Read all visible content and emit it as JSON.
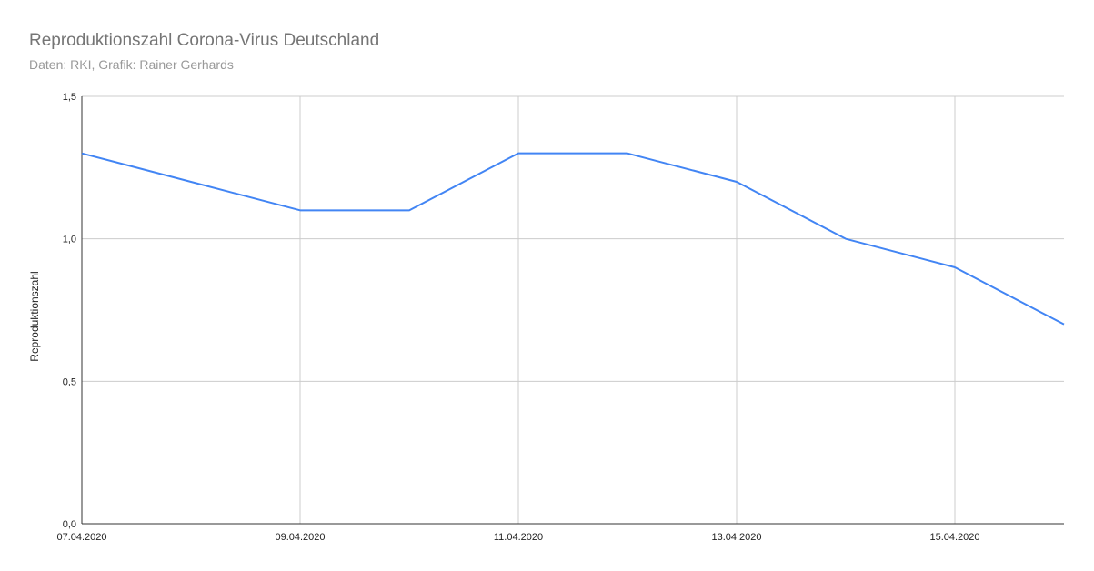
{
  "chart_data": {
    "type": "line",
    "title": "Reproduktionszahl Corona-Virus Deutschland",
    "subtitle": "Daten: RKI, Grafik: Rainer Gerhards",
    "y_label": "Reproduktionszahl",
    "categories": [
      "07.04.2020",
      null,
      "09.04.2020",
      null,
      "11.04.2020",
      null,
      "13.04.2020",
      null,
      "15.04.2020",
      null
    ],
    "values": [
      1.3,
      1.2,
      1.1,
      1.1,
      1.3,
      1.3,
      1.2,
      1.0,
      0.9,
      0.7
    ],
    "color": "#4285f4",
    "ylim": [
      0,
      1.5
    ],
    "yticks": [
      {
        "value": 0,
        "label": "0,0"
      },
      {
        "value": 0.5,
        "label": "0,5"
      },
      {
        "value": 1,
        "label": "1,0"
      },
      {
        "value": 1.5,
        "label": "1,5"
      }
    ],
    "grid": true
  }
}
